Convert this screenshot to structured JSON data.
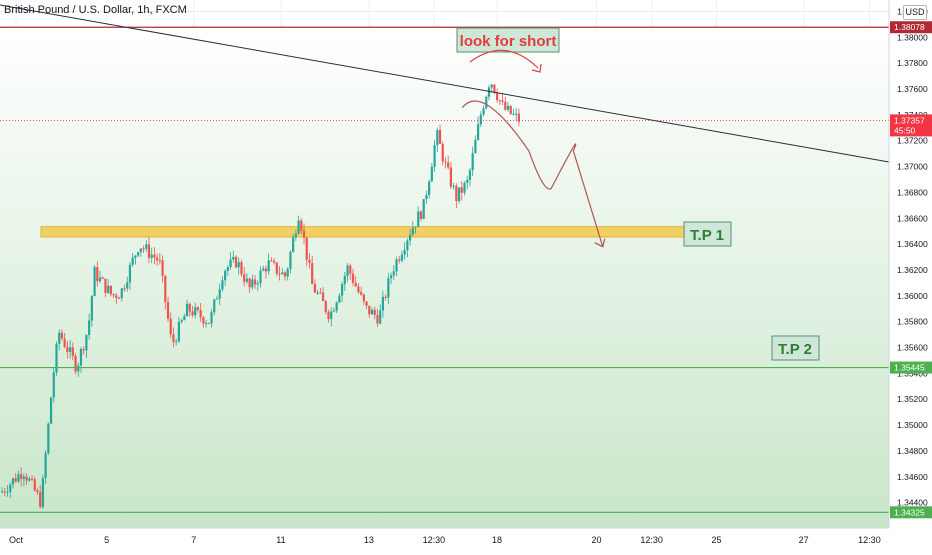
{
  "header": {
    "title": "British Pound / U.S. Dollar, 1h, FXCM",
    "currency": "USD"
  },
  "colors": {
    "bull": "#26a69a",
    "bear": "#ef5350",
    "resistance_line": "#b22833",
    "green_line": "#4caf50",
    "tp_zone": "#f2c94c",
    "trendline": "#2a2e39",
    "projection": "#b2554f",
    "zone_fill_top": "#ffffff",
    "zone_fill_bottom": "#c8e6c9",
    "price_tag_red": "#f23645",
    "price_tag_green": "#4caf50",
    "annotation_box": "#cfe6d8",
    "annotation_text": "#e03e3e",
    "tp_text": "#2e7d32"
  },
  "chart_data": {
    "type": "candlestick",
    "title": "British Pound / U.S. Dollar, 1h, FXCM",
    "ylim": [
      1.3425,
      1.3825
    ],
    "y_ticks": [
      "1.38200",
      "1.38000",
      "1.37800",
      "1.37600",
      "1.37400",
      "1.37200",
      "1.37000",
      "1.36800",
      "1.36600",
      "1.36400",
      "1.36200",
      "1.36000",
      "1.35800",
      "1.35600",
      "1.35400",
      "1.35200",
      "1.35000",
      "1.34800",
      "1.34600",
      "1.34400"
    ],
    "x_ticks": [
      "Oct",
      "5",
      "7",
      "11",
      "13",
      "12:30",
      "18",
      "20",
      "12:30",
      "25",
      "27",
      "12:30"
    ],
    "grid": true,
    "levels": [
      {
        "name": "resistance",
        "value": 1.38078,
        "label": "1.38078"
      },
      {
        "name": "current",
        "value": 1.37357,
        "label": "1.37357",
        "countdown": "45:50"
      },
      {
        "name": "tp2-level",
        "value": 1.35445,
        "label": "1.35445"
      },
      {
        "name": "lower-level",
        "value": 1.34325,
        "label": "1.34325"
      }
    ],
    "annotations": {
      "look_for_short": "look for short",
      "tp1": "T.P 1",
      "tp2": "T.P 2"
    },
    "tp1_zone": [
      1.36455,
      1.36535
    ],
    "trendline": [
      {
        "x": 0,
        "y": 1.3825
      },
      {
        "x": 1.0,
        "y": 1.37035
      }
    ],
    "projection_path": [
      [
        0.52,
        1.37455
      ],
      [
        0.595,
        1.3712
      ],
      [
        0.62,
        1.3683
      ],
      [
        0.645,
        1.3712
      ],
      [
        0.678,
        1.3638
      ]
    ],
    "path": [
      [
        0.0,
        1.3448
      ],
      [
        0.025,
        1.3465
      ],
      [
        0.045,
        1.344
      ],
      [
        0.058,
        1.3535
      ],
      [
        0.065,
        1.3572
      ],
      [
        0.085,
        1.3545
      ],
      [
        0.098,
        1.3575
      ],
      [
        0.105,
        1.3618
      ],
      [
        0.125,
        1.36
      ],
      [
        0.135,
        1.3603
      ],
      [
        0.155,
        1.364
      ],
      [
        0.178,
        1.3627
      ],
      [
        0.192,
        1.3562
      ],
      [
        0.21,
        1.359
      ],
      [
        0.235,
        1.358
      ],
      [
        0.25,
        1.362
      ],
      [
        0.265,
        1.3627
      ],
      [
        0.28,
        1.3605
      ],
      [
        0.3,
        1.3625
      ],
      [
        0.32,
        1.3615
      ],
      [
        0.335,
        1.3665
      ],
      [
        0.35,
        1.3608
      ],
      [
        0.37,
        1.3585
      ],
      [
        0.39,
        1.3622
      ],
      [
        0.41,
        1.359
      ],
      [
        0.425,
        1.3583
      ],
      [
        0.44,
        1.362
      ],
      [
        0.46,
        1.365
      ],
      [
        0.475,
        1.3668
      ],
      [
        0.49,
        1.3725
      ],
      [
        0.5,
        1.37
      ],
      [
        0.512,
        1.3676
      ],
      [
        0.525,
        1.3688
      ],
      [
        0.54,
        1.3742
      ],
      [
        0.55,
        1.3768
      ],
      [
        0.565,
        1.3745
      ],
      [
        0.585,
        1.3735
      ]
    ]
  }
}
